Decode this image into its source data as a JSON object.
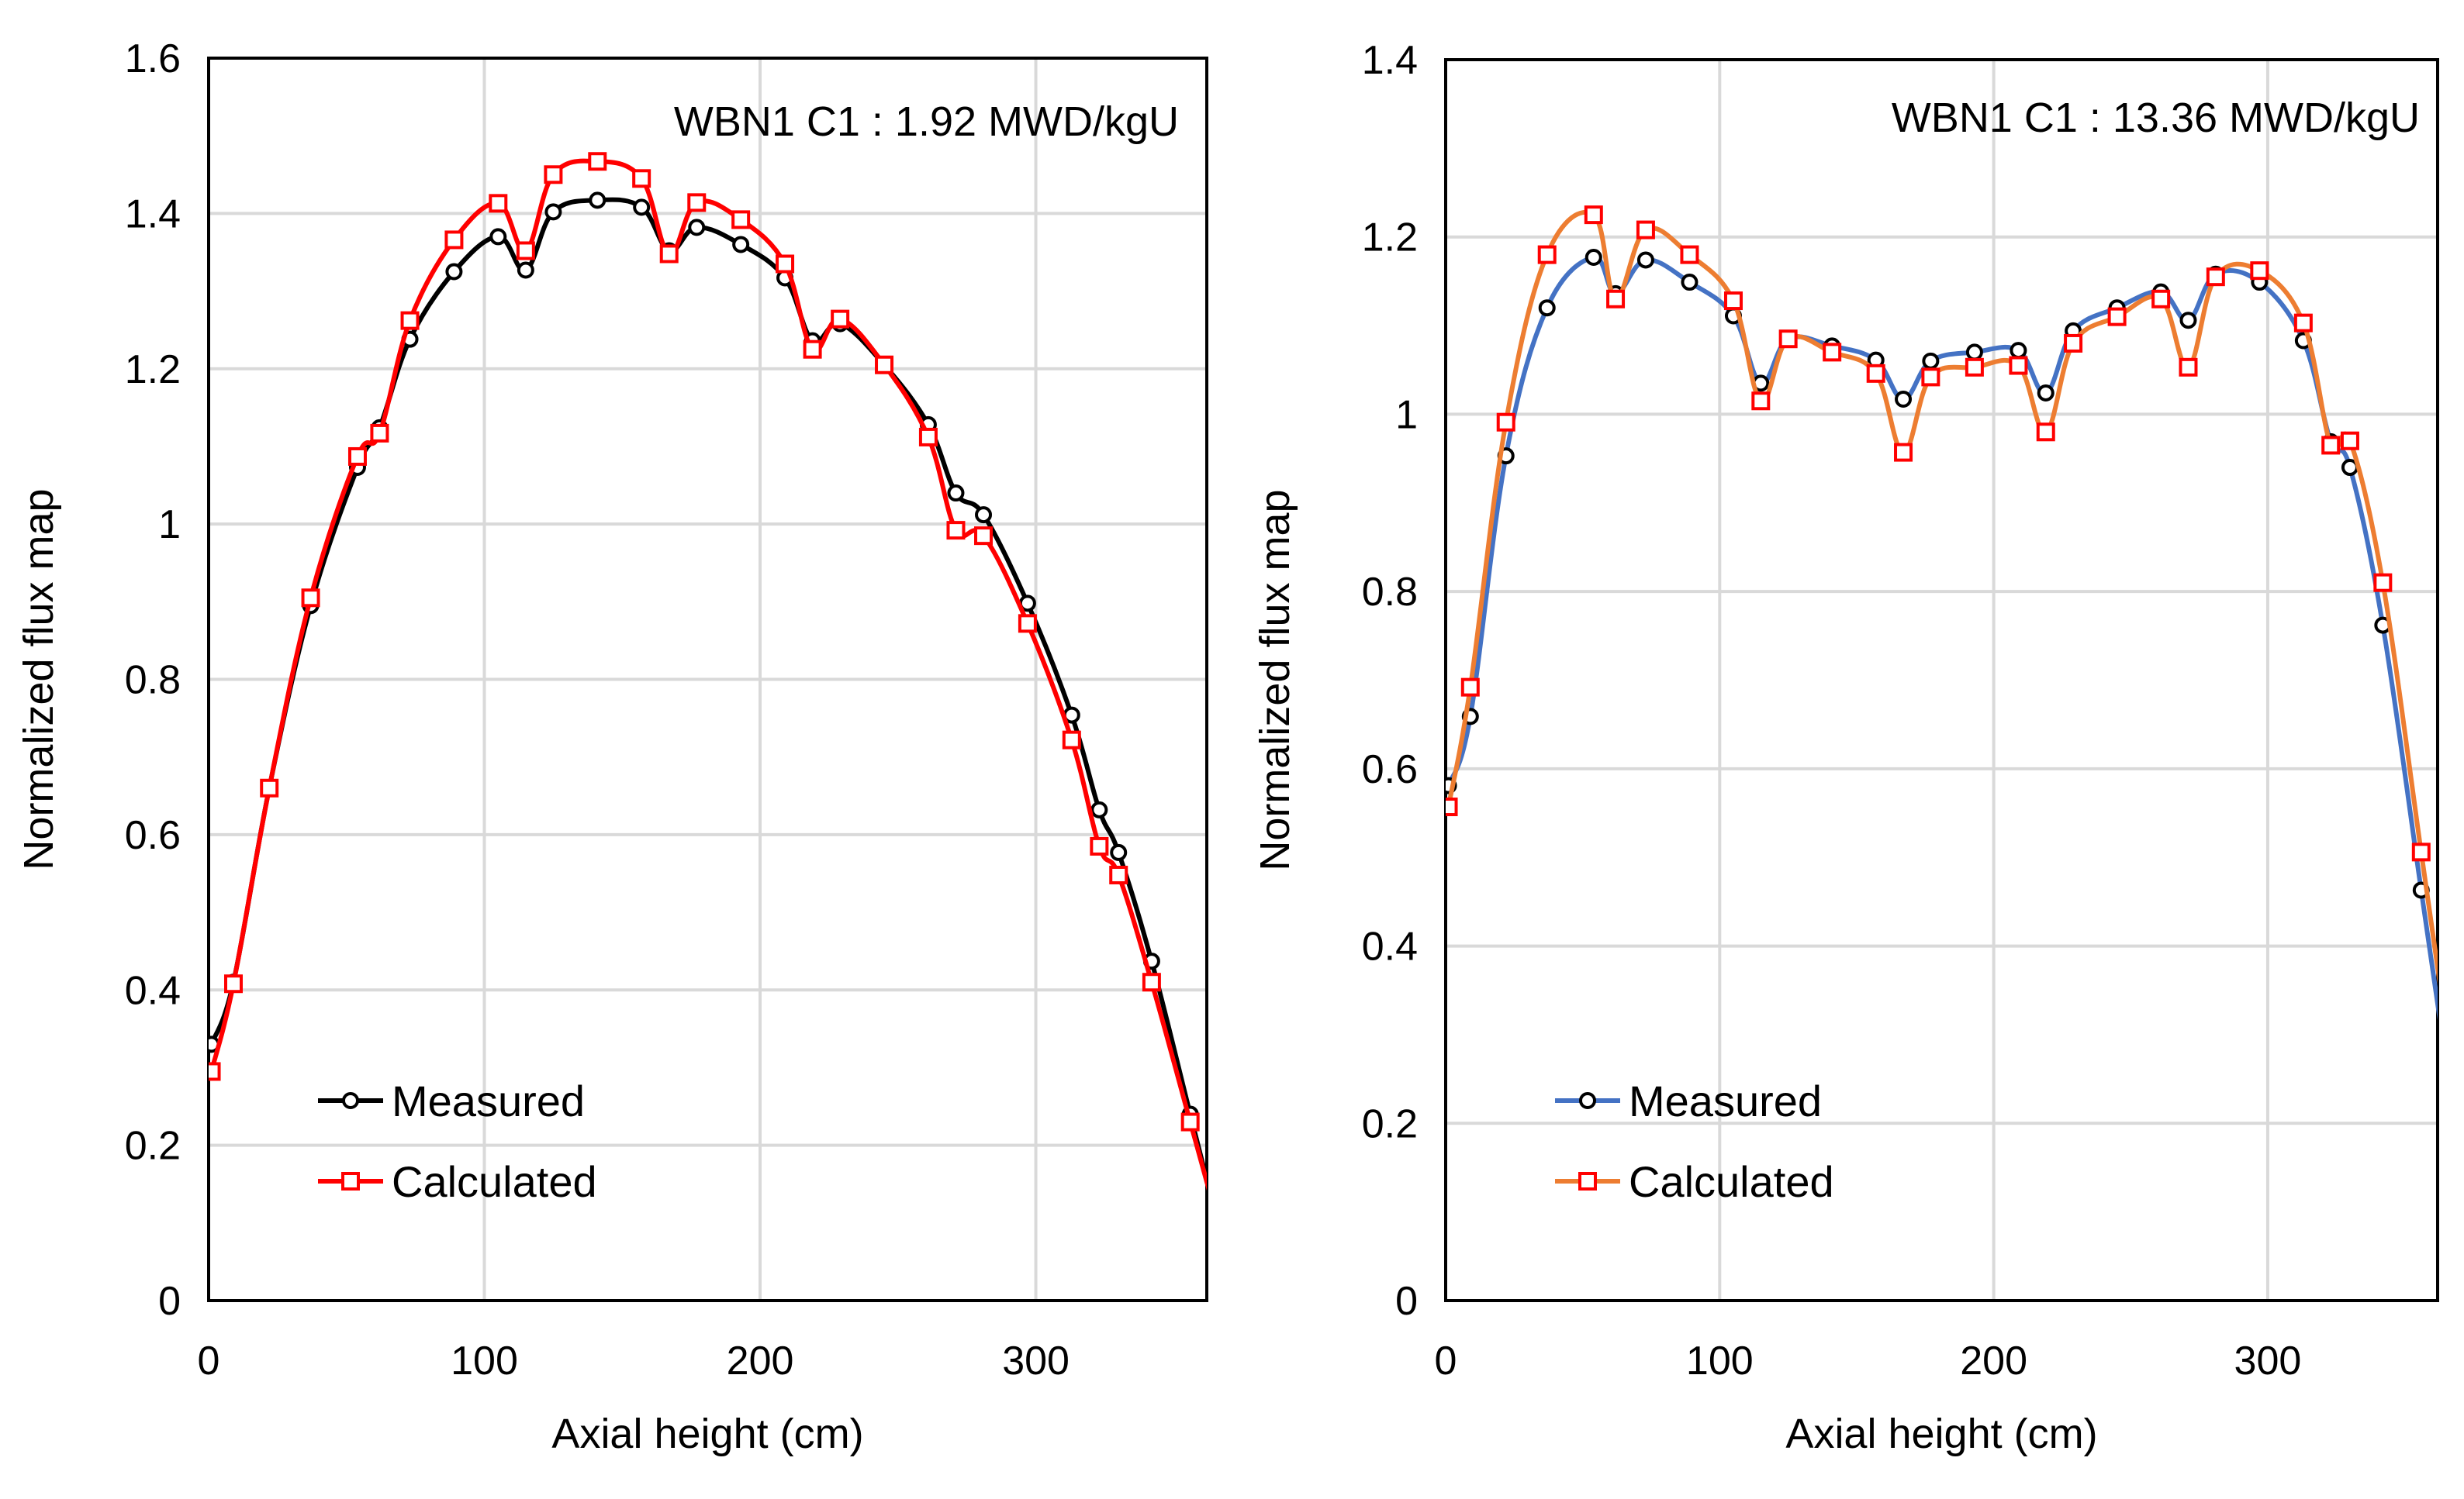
{
  "chart_data": [
    {
      "type": "line",
      "title": "WBN1 C1 : 1.92 MWD/kgU",
      "xlabel": "Axial height (cm)",
      "ylabel": "Normalized flux map",
      "xlim": [
        0,
        362
      ],
      "ylim": [
        0,
        1.6
      ],
      "xticks": [
        "0",
        "100",
        "200",
        "300"
      ],
      "yticks": [
        "0",
        "0.2",
        "0.4",
        "0.6",
        "0.8",
        "1",
        "1.2",
        "1.4",
        "1.6"
      ],
      "xtick_values": [
        0,
        100,
        200,
        300
      ],
      "ytick_values": [
        0,
        0.2,
        0.4,
        0.6,
        0.8,
        1,
        1.2,
        1.4,
        1.6
      ],
      "grid": true,
      "legend_position": "bottom-left",
      "x": [
        1,
        9,
        22,
        37,
        54,
        62,
        73,
        89,
        105,
        115,
        125,
        141,
        157,
        167,
        177,
        193,
        209,
        219,
        229,
        245,
        261,
        271,
        281,
        297,
        313,
        323,
        330,
        342,
        356
      ],
      "series": [
        {
          "name": "Measured",
          "line_color": "#000000",
          "marker": "circle",
          "marker_color": "#000000",
          "values": [
            0.33,
            0.41,
            0.66,
            0.895,
            1.073,
            1.124,
            1.238,
            1.325,
            1.37,
            1.327,
            1.402,
            1.417,
            1.408,
            1.352,
            1.382,
            1.36,
            1.317,
            1.236,
            1.258,
            1.205,
            1.128,
            1.04,
            1.012,
            0.898,
            0.754,
            0.632,
            0.577,
            0.437,
            0.24
          ]
        },
        {
          "name": "Calculated",
          "line_color": "#ff0000",
          "marker": "square",
          "marker_color": "#ff0000",
          "values": [
            0.295,
            0.408,
            0.66,
            0.905,
            1.087,
            1.117,
            1.262,
            1.366,
            1.413,
            1.352,
            1.45,
            1.467,
            1.445,
            1.348,
            1.414,
            1.392,
            1.335,
            1.225,
            1.264,
            1.205,
            1.112,
            0.992,
            0.985,
            0.872,
            0.722,
            0.585,
            0.548,
            0.41,
            0.23
          ]
        }
      ]
    },
    {
      "type": "line",
      "title": "WBN1 C1 : 13.36 MWD/kgU",
      "xlabel": "Axial height (cm)",
      "ylabel": "Normalized flux map",
      "xlim": [
        0,
        362
      ],
      "ylim": [
        0,
        1.4
      ],
      "xticks": [
        "0",
        "100",
        "200",
        "300"
      ],
      "yticks": [
        "0",
        "0.2",
        "0.4",
        "0.6",
        "0.8",
        "1",
        "1.2",
        "1.4"
      ],
      "xtick_values": [
        0,
        100,
        200,
        300
      ],
      "ytick_values": [
        0,
        0.2,
        0.4,
        0.6,
        0.8,
        1,
        1.2,
        1.4
      ],
      "grid": true,
      "legend_position": "bottom-left",
      "x": [
        1,
        9,
        22,
        37,
        54,
        62,
        73,
        89,
        105,
        115,
        125,
        141,
        157,
        167,
        177,
        193,
        209,
        219,
        229,
        245,
        261,
        271,
        281,
        297,
        313,
        323,
        330,
        342,
        356
      ],
      "series": [
        {
          "name": "Measured",
          "line_color": "#4472c4",
          "marker": "circle",
          "marker_color": "#000000",
          "values": [
            0.581,
            0.659,
            0.953,
            1.12,
            1.177,
            1.136,
            1.174,
            1.149,
            1.111,
            1.035,
            1.085,
            1.077,
            1.061,
            1.017,
            1.06,
            1.07,
            1.072,
            1.024,
            1.094,
            1.12,
            1.138,
            1.106,
            1.158,
            1.149,
            1.083,
            0.969,
            0.94,
            0.762,
            0.463
          ]
        },
        {
          "name": "Calculated",
          "line_color": "#ed7d31",
          "marker": "square",
          "marker_color": "#ff0000",
          "values": [
            0.557,
            0.692,
            0.991,
            1.18,
            1.225,
            1.13,
            1.208,
            1.18,
            1.128,
            1.015,
            1.085,
            1.07,
            1.046,
            0.957,
            1.042,
            1.053,
            1.055,
            0.98,
            1.08,
            1.11,
            1.13,
            1.053,
            1.155,
            1.162,
            1.103,
            0.965,
            0.97,
            0.81,
            0.506
          ]
        }
      ]
    }
  ]
}
